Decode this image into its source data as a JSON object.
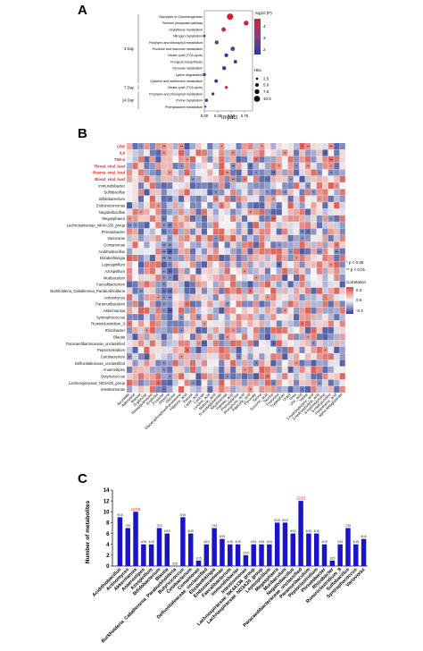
{
  "panels": {
    "a": "A",
    "b": "B",
    "c": "C"
  },
  "panel_a": {
    "xlabel": "Impact",
    "xticks": [
      "0.00",
      "0.25",
      "0.50",
      "0.75"
    ],
    "legend_color_title": "-log10 (P)",
    "legend_color_ticks": [
      "4",
      "3",
      "2"
    ],
    "legend_size_title": "Hits",
    "legend_size_ticks": [
      "2.5",
      "5.0",
      "7.5",
      "10.0"
    ],
    "groups": [
      {
        "label": "3 Day",
        "rows": [
          {
            "name": "Glycolysis or Gluconeogenesis",
            "impact": 0.48,
            "logp": 4.8,
            "hits": 10
          },
          {
            "name": "Pentose phosphate pathway",
            "impact": 0.78,
            "logp": 4.6,
            "hits": 7
          },
          {
            "name": "Glutathione metabolism",
            "impact": 0.36,
            "logp": 4.2,
            "hits": 6
          },
          {
            "name": "Nitrogen metabolism",
            "impact": 0.0,
            "logp": 2.8,
            "hits": 2
          },
          {
            "name": "Porphyrin and chlorophyll metabolism",
            "impact": 0.23,
            "logp": 2.5,
            "hits": 5
          },
          {
            "name": "Fructose and mannose metabolism",
            "impact": 0.53,
            "logp": 2.4,
            "hits": 6
          },
          {
            "name": "Citrate cycle (TCA cycle)",
            "impact": 0.41,
            "logp": 2.0,
            "hits": 5
          },
          {
            "name": "N-Glycan biosynthesis",
            "impact": 0.58,
            "logp": 1.9,
            "hits": 4
          },
          {
            "name": "Pyruvate metabolism",
            "impact": 0.37,
            "logp": 1.8,
            "hits": 5
          },
          {
            "name": "Lysine degradation",
            "impact": 0.0,
            "logp": 1.6,
            "hits": 3
          },
          {
            "name": "Cysteine and methionine metabolism",
            "impact": 0.22,
            "logp": 1.5,
            "hits": 4
          }
        ]
      },
      {
        "label": "7 Day",
        "rows": [
          {
            "name": "Citrate cycle (TCA cycle)",
            "impact": 0.41,
            "logp": 4.0,
            "hits": 3
          }
        ]
      },
      {
        "label": "14 Day",
        "rows": [
          {
            "name": "Porphyrin and chlorophyll metabolism",
            "impact": 0.16,
            "logp": 1.9,
            "hits": 3
          },
          {
            "name": "Purine metabolism",
            "impact": 0.04,
            "logp": 1.8,
            "hits": 3
          },
          {
            "name": "Phenylalanine metabolism",
            "impact": 0.02,
            "logp": 1.6,
            "hits": 1
          }
        ]
      }
    ]
  },
  "panel_b": {
    "legend_sig": [
      "* p < 0.05",
      "** p < 0.01"
    ],
    "legend_title": "Correlation",
    "legend_ticks": [
      "0.4",
      "0.0",
      "-0.4"
    ],
    "rows": [
      "CRP",
      "IL6",
      "TNF-α",
      "Throat_viral_load",
      "Plasma_viral_load",
      "Blood_viral_load",
      "Immundisbacter",
      "Sulfobacillus",
      "Bifidobacterium",
      "Endozoicomonas",
      "Negativibacillus",
      "Megasphaera",
      "Lachnospiraceae_NK4A136_group",
      "Phreatobacter",
      "Variovorax",
      "Comamonas",
      "Acidithiobacillus",
      "Elizabethkingia",
      "Leptospirillum",
      "Azospirillum",
      "Muribaculum",
      "Faecalibacterium",
      "Burkholderia_Caballeronia_Paraburkholderia",
      "Actinomyces",
      "Paramuribaculum",
      "Akkermansia",
      "Syntrophococcus",
      "Ruminiclostridium_9",
      "Rhizobacter",
      "Blautia",
      "Paracaedibacteraceae_unclassified",
      "Peptoclostridium",
      "Cetobacterium",
      "Defluviitaleaceae_unclassified",
      "Anaerostipes",
      "Butyricicoccus",
      "Lachnospiraceae_ND3A20_group",
      "Intestinimonas"
    ],
    "red_rows": [
      0,
      1,
      2,
      3,
      4,
      5
    ],
    "cols": [
      "Aconitate",
      "Adenosine",
      "Alanine",
      "D-glucose",
      "Deoxyguanosine",
      "Erythritol",
      "Fructose",
      "Glycerol",
      "Glycine",
      "Glycerophosphoethanolamine",
      "Hippuric_acid",
      "Inosine",
      "Lactic_acid",
      "Lactose",
      "Linoleic_acid",
      "Malonic_acid",
      "N-acetylglutamate",
      "Nicotinamide",
      "Palmitic_acid",
      "Phenylalanine",
      "Phosphoric_acid",
      "Pipecolic_acid",
      "Pyruvate",
      "Serine",
      "Succinic_acid",
      "Taurine",
      "Threonine",
      "Tryptophan",
      "Uracil",
      "Urea",
      "Uric_acid",
      "Valine",
      "2-hydroxybutyric_acid",
      "3-hydroxybutyric_acid",
      "4-hydroxyproline",
      "5-methyluridine",
      "Pantothenic_acid",
      "alpha-ketoglutarate"
    ],
    "sig_cells": [
      [
        0,
        2,
        "*"
      ],
      [
        0,
        6,
        "**"
      ],
      [
        0,
        9,
        "**"
      ],
      [
        0,
        16,
        "*"
      ],
      [
        0,
        23,
        "*"
      ],
      [
        0,
        30,
        "*"
      ],
      [
        0,
        31,
        "**"
      ],
      [
        0,
        35,
        "**"
      ],
      [
        1,
        6,
        "*"
      ],
      [
        1,
        18,
        "*"
      ],
      [
        1,
        27,
        "*"
      ],
      [
        1,
        34,
        "*"
      ],
      [
        2,
        10,
        "*"
      ],
      [
        2,
        22,
        "*"
      ],
      [
        2,
        35,
        "**"
      ],
      [
        3,
        9,
        "*"
      ],
      [
        3,
        18,
        "**"
      ],
      [
        3,
        21,
        "*"
      ],
      [
        3,
        26,
        "*"
      ],
      [
        3,
        29,
        "*"
      ],
      [
        3,
        31,
        "**"
      ],
      [
        3,
        35,
        "*"
      ],
      [
        4,
        7,
        "*"
      ],
      [
        4,
        17,
        "**"
      ],
      [
        4,
        22,
        "*"
      ],
      [
        4,
        25,
        "**"
      ],
      [
        4,
        33,
        "*"
      ],
      [
        4,
        35,
        "*"
      ],
      [
        5,
        11,
        "*"
      ],
      [
        5,
        18,
        "**"
      ],
      [
        5,
        20,
        "*"
      ],
      [
        5,
        24,
        "*"
      ],
      [
        5,
        28,
        "*"
      ],
      [
        6,
        15,
        "*"
      ],
      [
        6,
        31,
        "*"
      ],
      [
        6,
        36,
        "*"
      ],
      [
        7,
        15,
        "*"
      ],
      [
        7,
        24,
        "*"
      ],
      [
        7,
        27,
        "**"
      ],
      [
        7,
        32,
        "*"
      ],
      [
        8,
        7,
        "*"
      ],
      [
        8,
        15,
        "*"
      ],
      [
        8,
        25,
        "*"
      ],
      [
        8,
        33,
        "*"
      ],
      [
        9,
        5,
        "*"
      ],
      [
        9,
        16,
        "*"
      ],
      [
        10,
        2,
        "*"
      ],
      [
        10,
        21,
        "*"
      ],
      [
        11,
        0,
        "*"
      ],
      [
        11,
        6,
        "*"
      ],
      [
        11,
        25,
        "**"
      ],
      [
        11,
        35,
        "*"
      ],
      [
        12,
        0,
        "**"
      ],
      [
        12,
        1,
        "*"
      ],
      [
        12,
        6,
        "*"
      ],
      [
        12,
        7,
        "**"
      ],
      [
        13,
        6,
        "*"
      ],
      [
        13,
        30,
        "**"
      ],
      [
        13,
        31,
        "*"
      ],
      [
        14,
        7,
        "*"
      ],
      [
        14,
        15,
        "*"
      ],
      [
        14,
        30,
        "*"
      ],
      [
        15,
        6,
        "**"
      ],
      [
        15,
        7,
        "**"
      ],
      [
        15,
        26,
        "*"
      ],
      [
        15,
        36,
        "*"
      ],
      [
        16,
        6,
        "**"
      ],
      [
        16,
        7,
        "**"
      ],
      [
        16,
        28,
        "*"
      ],
      [
        16,
        33,
        "**"
      ],
      [
        16,
        36,
        "**"
      ],
      [
        17,
        6,
        "**"
      ],
      [
        17,
        7,
        "**"
      ],
      [
        17,
        29,
        "*"
      ],
      [
        18,
        7,
        "*"
      ],
      [
        18,
        26,
        "*"
      ],
      [
        18,
        35,
        "*"
      ],
      [
        19,
        6,
        "*"
      ],
      [
        19,
        7,
        "*"
      ],
      [
        19,
        20,
        "*"
      ],
      [
        20,
        6,
        "*"
      ],
      [
        20,
        7,
        "*"
      ],
      [
        20,
        22,
        "*"
      ],
      [
        21,
        6,
        "*"
      ],
      [
        21,
        11,
        "*"
      ],
      [
        22,
        2,
        "**"
      ],
      [
        22,
        6,
        "*"
      ],
      [
        22,
        7,
        "**"
      ],
      [
        22,
        21,
        "*"
      ],
      [
        23,
        5,
        "*"
      ],
      [
        23,
        6,
        "*"
      ],
      [
        23,
        7,
        "**"
      ],
      [
        23,
        24,
        "*"
      ],
      [
        24,
        6,
        "*"
      ],
      [
        24,
        10,
        "*"
      ],
      [
        24,
        17,
        "*"
      ],
      [
        25,
        6,
        "*"
      ],
      [
        25,
        7,
        "**"
      ],
      [
        25,
        27,
        "*"
      ],
      [
        26,
        9,
        "*"
      ],
      [
        26,
        12,
        "*"
      ],
      [
        27,
        0,
        "*"
      ],
      [
        27,
        13,
        "*"
      ],
      [
        27,
        30,
        "*"
      ],
      [
        28,
        3,
        "*"
      ],
      [
        28,
        9,
        "*"
      ],
      [
        28,
        18,
        "*"
      ],
      [
        29,
        17,
        "*"
      ],
      [
        29,
        31,
        "*"
      ],
      [
        30,
        12,
        "*"
      ],
      [
        30,
        25,
        "*"
      ],
      [
        30,
        32,
        "*"
      ],
      [
        31,
        10,
        "*"
      ],
      [
        31,
        26,
        "*"
      ],
      [
        31,
        34,
        "*"
      ],
      [
        32,
        0,
        "**"
      ],
      [
        32,
        9,
        "*"
      ],
      [
        32,
        19,
        "*"
      ],
      [
        33,
        6,
        "*"
      ],
      [
        33,
        22,
        "*"
      ],
      [
        33,
        29,
        "*"
      ],
      [
        34,
        6,
        "*"
      ],
      [
        34,
        20,
        "*"
      ],
      [
        34,
        28,
        "*"
      ],
      [
        35,
        7,
        "*"
      ],
      [
        35,
        17,
        "*"
      ],
      [
        35,
        24,
        "**"
      ],
      [
        36,
        5,
        "*"
      ],
      [
        36,
        11,
        "*"
      ],
      [
        36,
        25,
        "*"
      ],
      [
        36,
        33,
        "*"
      ],
      [
        37,
        6,
        "*"
      ],
      [
        37,
        21,
        "*"
      ],
      [
        37,
        30,
        "*"
      ]
    ]
  },
  "chart_data": {
    "type": "bar",
    "ylabel": "Number of metabolites",
    "ylim": [
      0,
      14
    ],
    "yticks": [
      "0",
      "2",
      "4",
      "6",
      "8",
      "10",
      "12",
      "14"
    ],
    "categories": [
      "Acidithiobacillus",
      "Actinomyces",
      "Akkermansia",
      "Anaerostipes",
      "Azospirillum",
      "Bifidobacterium",
      "Blautia",
      "Burkholderia_Caballeronia_Paraburkholderia",
      "Butyricicoccus",
      "Cetobacterium",
      "Comamonas",
      "Defluviitaleaceae_unclassified",
      "Elizabethkingia",
      "Endozoicomonas",
      "Faecalibacterium",
      "Immundisbacter",
      "Intestinimonas",
      "Lachnospiraceae_NK4A136_group",
      "Lachnospiraceae_ND3A20_group",
      "Leptospirillum",
      "Megasphaera",
      "Muribaculum",
      "Negativibacillus",
      "Paracaedibacteraceae_unclassified",
      "Paramuribaculum",
      "Peptoclostridium",
      "Phreatobacter",
      "Rhizobacter",
      "Ruminiclostridium_9",
      "Sulfobacillus",
      "Syntrophococcus",
      "Variovorax"
    ],
    "values": [
      9,
      7,
      10,
      4,
      4,
      7,
      6,
      0,
      9,
      6,
      1,
      4,
      7,
      5,
      4,
      4,
      2,
      4,
      4,
      4,
      8,
      8,
      6,
      12,
      6,
      6,
      4,
      1,
      4,
      7,
      4,
      5
    ],
    "labels": [
      "9/15",
      "7/15",
      "10/15",
      "4/15",
      "4/15",
      "7/15",
      "6/15",
      "0/15",
      "9/15",
      "6/15",
      "1/15",
      "4/15",
      "7/15",
      "5/15",
      "4/15",
      "4/15",
      "2/15",
      "4/15",
      "4/15",
      "4/15",
      "8/15",
      "8/15",
      "6/15",
      "12/15",
      "6/15",
      "6/15",
      "4/15",
      "1/15",
      "4/15",
      "7/15",
      "4/15",
      "5/15"
    ],
    "red_label_indices": [
      2,
      23
    ],
    "bar_color": "#1a14c8",
    "red_label_color": "#e0201c"
  }
}
